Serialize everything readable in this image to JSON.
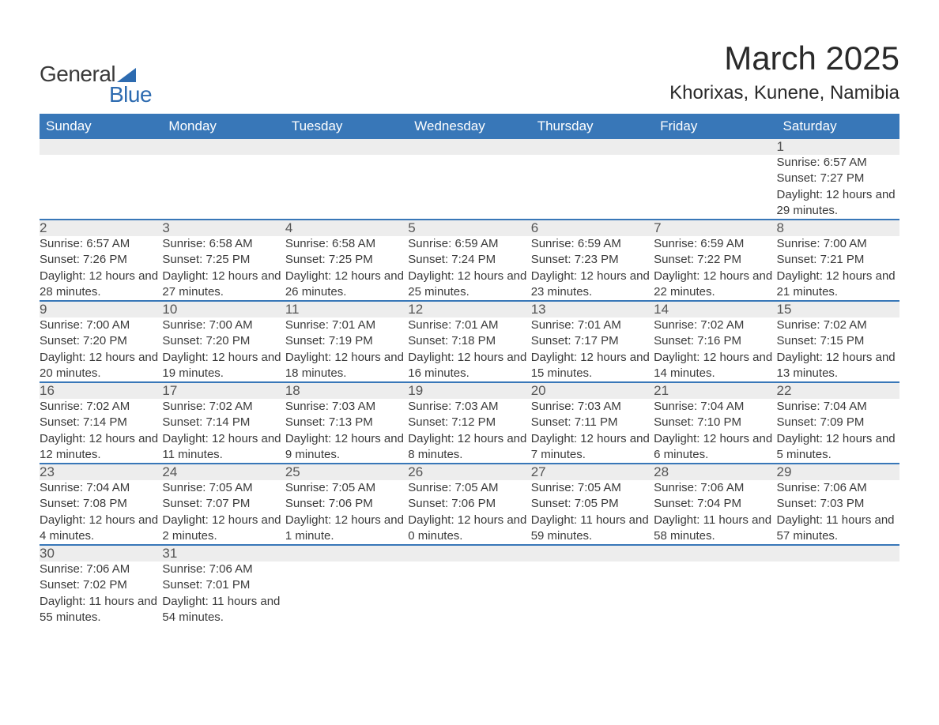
{
  "logo": {
    "general": "General",
    "blue": "Blue"
  },
  "title": "March 2025",
  "location": "Khorixas, Kunene, Namibia",
  "colors": {
    "header_bg": "#3877b8",
    "header_text": "#ffffff",
    "daynum_bg": "#ededed",
    "row_border": "#3877b8",
    "body_text": "#3a3a3a",
    "logo_accent": "#2d6bb0",
    "page_bg": "#ffffff"
  },
  "calendar": {
    "type": "table",
    "columns": [
      "Sunday",
      "Monday",
      "Tuesday",
      "Wednesday",
      "Thursday",
      "Friday",
      "Saturday"
    ],
    "weeks": [
      [
        null,
        null,
        null,
        null,
        null,
        null,
        {
          "n": "1",
          "sr": "6:57 AM",
          "ss": "7:27 PM",
          "dl": "12 hours and 29 minutes."
        }
      ],
      [
        {
          "n": "2",
          "sr": "6:57 AM",
          "ss": "7:26 PM",
          "dl": "12 hours and 28 minutes."
        },
        {
          "n": "3",
          "sr": "6:58 AM",
          "ss": "7:25 PM",
          "dl": "12 hours and 27 minutes."
        },
        {
          "n": "4",
          "sr": "6:58 AM",
          "ss": "7:25 PM",
          "dl": "12 hours and 26 minutes."
        },
        {
          "n": "5",
          "sr": "6:59 AM",
          "ss": "7:24 PM",
          "dl": "12 hours and 25 minutes."
        },
        {
          "n": "6",
          "sr": "6:59 AM",
          "ss": "7:23 PM",
          "dl": "12 hours and 23 minutes."
        },
        {
          "n": "7",
          "sr": "6:59 AM",
          "ss": "7:22 PM",
          "dl": "12 hours and 22 minutes."
        },
        {
          "n": "8",
          "sr": "7:00 AM",
          "ss": "7:21 PM",
          "dl": "12 hours and 21 minutes."
        }
      ],
      [
        {
          "n": "9",
          "sr": "7:00 AM",
          "ss": "7:20 PM",
          "dl": "12 hours and 20 minutes."
        },
        {
          "n": "10",
          "sr": "7:00 AM",
          "ss": "7:20 PM",
          "dl": "12 hours and 19 minutes."
        },
        {
          "n": "11",
          "sr": "7:01 AM",
          "ss": "7:19 PM",
          "dl": "12 hours and 18 minutes."
        },
        {
          "n": "12",
          "sr": "7:01 AM",
          "ss": "7:18 PM",
          "dl": "12 hours and 16 minutes."
        },
        {
          "n": "13",
          "sr": "7:01 AM",
          "ss": "7:17 PM",
          "dl": "12 hours and 15 minutes."
        },
        {
          "n": "14",
          "sr": "7:02 AM",
          "ss": "7:16 PM",
          "dl": "12 hours and 14 minutes."
        },
        {
          "n": "15",
          "sr": "7:02 AM",
          "ss": "7:15 PM",
          "dl": "12 hours and 13 minutes."
        }
      ],
      [
        {
          "n": "16",
          "sr": "7:02 AM",
          "ss": "7:14 PM",
          "dl": "12 hours and 12 minutes."
        },
        {
          "n": "17",
          "sr": "7:02 AM",
          "ss": "7:14 PM",
          "dl": "12 hours and 11 minutes."
        },
        {
          "n": "18",
          "sr": "7:03 AM",
          "ss": "7:13 PM",
          "dl": "12 hours and 9 minutes."
        },
        {
          "n": "19",
          "sr": "7:03 AM",
          "ss": "7:12 PM",
          "dl": "12 hours and 8 minutes."
        },
        {
          "n": "20",
          "sr": "7:03 AM",
          "ss": "7:11 PM",
          "dl": "12 hours and 7 minutes."
        },
        {
          "n": "21",
          "sr": "7:04 AM",
          "ss": "7:10 PM",
          "dl": "12 hours and 6 minutes."
        },
        {
          "n": "22",
          "sr": "7:04 AM",
          "ss": "7:09 PM",
          "dl": "12 hours and 5 minutes."
        }
      ],
      [
        {
          "n": "23",
          "sr": "7:04 AM",
          "ss": "7:08 PM",
          "dl": "12 hours and 4 minutes."
        },
        {
          "n": "24",
          "sr": "7:05 AM",
          "ss": "7:07 PM",
          "dl": "12 hours and 2 minutes."
        },
        {
          "n": "25",
          "sr": "7:05 AM",
          "ss": "7:06 PM",
          "dl": "12 hours and 1 minute."
        },
        {
          "n": "26",
          "sr": "7:05 AM",
          "ss": "7:06 PM",
          "dl": "12 hours and 0 minutes."
        },
        {
          "n": "27",
          "sr": "7:05 AM",
          "ss": "7:05 PM",
          "dl": "11 hours and 59 minutes."
        },
        {
          "n": "28",
          "sr": "7:06 AM",
          "ss": "7:04 PM",
          "dl": "11 hours and 58 minutes."
        },
        {
          "n": "29",
          "sr": "7:06 AM",
          "ss": "7:03 PM",
          "dl": "11 hours and 57 minutes."
        }
      ],
      [
        {
          "n": "30",
          "sr": "7:06 AM",
          "ss": "7:02 PM",
          "dl": "11 hours and 55 minutes."
        },
        {
          "n": "31",
          "sr": "7:06 AM",
          "ss": "7:01 PM",
          "dl": "11 hours and 54 minutes."
        },
        null,
        null,
        null,
        null,
        null
      ]
    ],
    "labels": {
      "sunrise": "Sunrise: ",
      "sunset": "Sunset: ",
      "daylight": "Daylight: "
    }
  }
}
